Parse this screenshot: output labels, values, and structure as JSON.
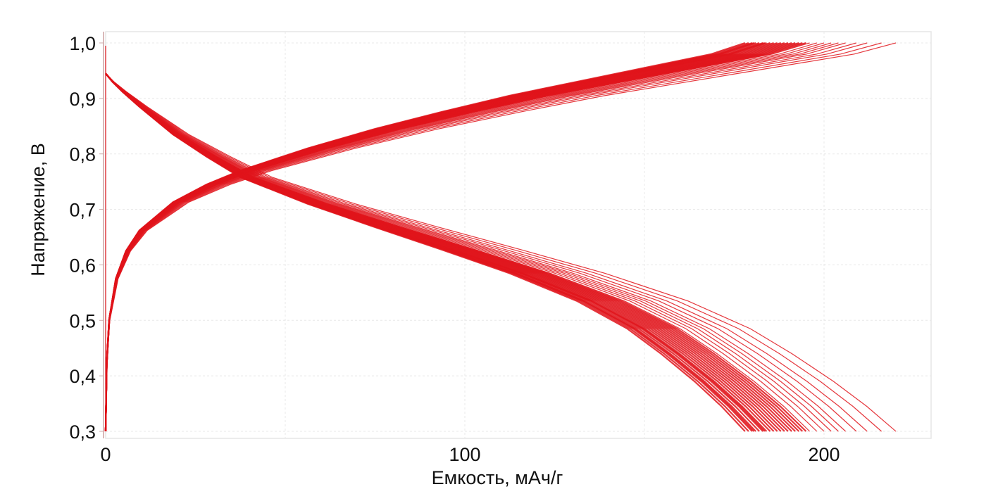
{
  "chart_data": {
    "type": "line",
    "title": "",
    "xlabel": "Емкость, мАч/г",
    "ylabel": "Напряжение, В",
    "xlim": [
      0,
      232
    ],
    "ylim": [
      0.3,
      1.0
    ],
    "grid": true,
    "x_ticks": [
      {
        "value": 0,
        "label": "0"
      },
      {
        "value": 100,
        "label": "100"
      },
      {
        "value": 200,
        "label": "200"
      }
    ],
    "y_ticks": [
      {
        "value": 1.0,
        "label": "1,0"
      },
      {
        "value": 0.9,
        "label": "0,9"
      },
      {
        "value": 0.8,
        "label": "0,8"
      },
      {
        "value": 0.7,
        "label": "0,7"
      },
      {
        "value": 0.6,
        "label": "0,6"
      },
      {
        "value": 0.5,
        "label": "0,5"
      },
      {
        "value": 0.4,
        "label": "0,4"
      },
      {
        "value": 0.3,
        "label": "0,3"
      }
    ],
    "series_color": "#e0141b",
    "reference_capacity": 190,
    "cycle_capacities": [
      178,
      179,
      180,
      180.5,
      181,
      182,
      183,
      183.5,
      184,
      185,
      186,
      187,
      188,
      189,
      190,
      191,
      192,
      193,
      194,
      195,
      196,
      198,
      200,
      202,
      204,
      206,
      209,
      212,
      216,
      220
    ],
    "discharge_reference": [
      [
        0,
        0.945
      ],
      [
        2,
        0.93
      ],
      [
        5,
        0.912
      ],
      [
        10,
        0.885
      ],
      [
        20,
        0.835
      ],
      [
        30,
        0.795
      ],
      [
        40,
        0.758
      ],
      [
        60,
        0.71
      ],
      [
        80,
        0.668
      ],
      [
        100,
        0.627
      ],
      [
        120,
        0.585
      ],
      [
        140,
        0.535
      ],
      [
        155,
        0.485
      ],
      [
        165,
        0.44
      ],
      [
        175,
        0.39
      ],
      [
        183,
        0.345
      ],
      [
        190,
        0.3
      ]
    ],
    "charge_reference": [
      [
        0,
        0.3
      ],
      [
        0.3,
        0.42
      ],
      [
        1,
        0.5
      ],
      [
        3,
        0.575
      ],
      [
        6,
        0.625
      ],
      [
        10,
        0.662
      ],
      [
        20,
        0.713
      ],
      [
        30,
        0.745
      ],
      [
        40,
        0.77
      ],
      [
        60,
        0.81
      ],
      [
        80,
        0.845
      ],
      [
        100,
        0.876
      ],
      [
        120,
        0.905
      ],
      [
        140,
        0.93
      ],
      [
        160,
        0.955
      ],
      [
        180,
        0.98
      ],
      [
        190,
        1.0
      ]
    ]
  }
}
